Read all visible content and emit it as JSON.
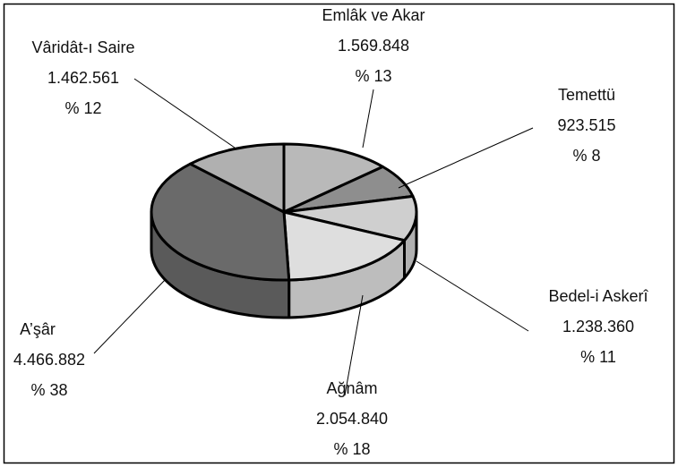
{
  "chart_data": {
    "type": "pie3d",
    "categories": [
      "Emlâk ve Akar",
      "Temettü",
      "Bedel-i Askerî",
      "Ağnâm",
      "A’şâr",
      "Vâridât-ı Saire"
    ],
    "values": [
      1569848,
      923515,
      1238360,
      2054840,
      4466882,
      1462561
    ],
    "value_labels": [
      "1.569.848",
      "923.515",
      "1.238.360",
      "2.054.840",
      "4.466.882",
      "1.462.561"
    ],
    "percents": [
      13,
      8,
      11,
      18,
      38,
      12
    ],
    "percent_labels": [
      "% 13",
      "% 8",
      "% 11",
      "% 18",
      "% 38",
      "% 12"
    ],
    "colors": [
      "#b9b9b9",
      "#8e8e8e",
      "#cfcfcf",
      "#dedede",
      "#6a6a6a",
      "#b0b0b0"
    ]
  }
}
